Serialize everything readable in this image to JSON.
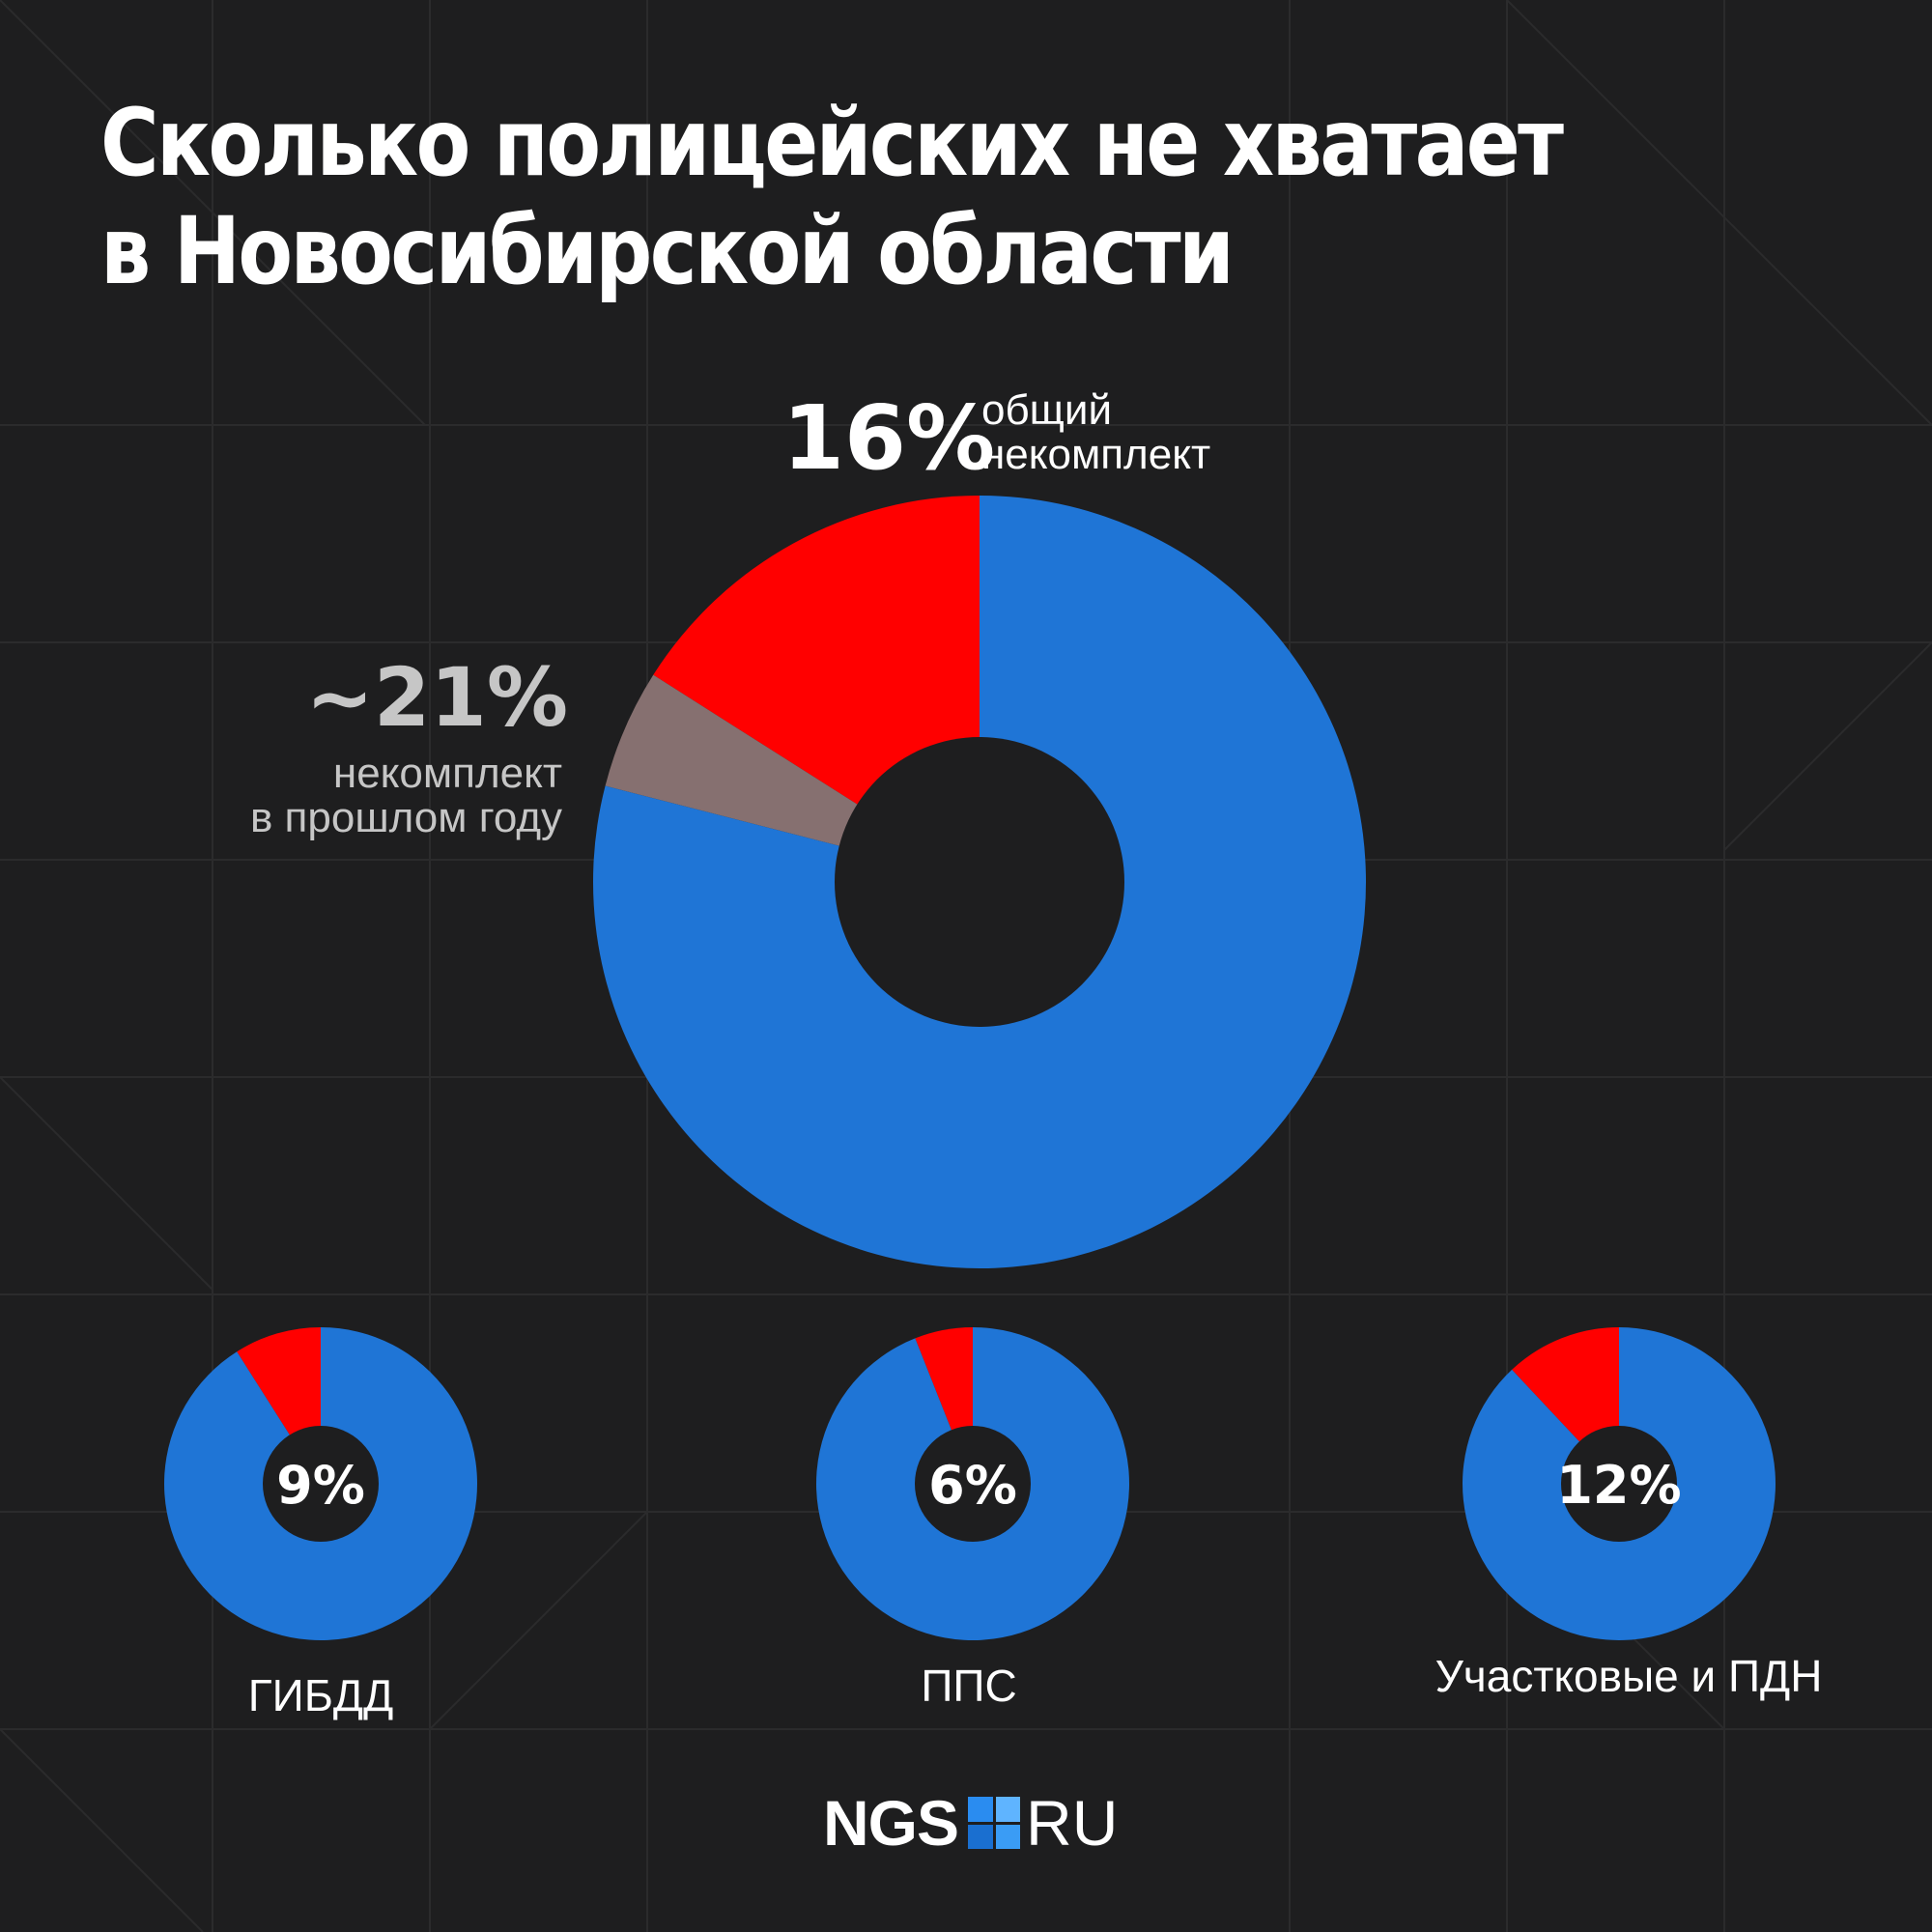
{
  "title": {
    "line1": "Сколько полицейских не хватает",
    "line2": "в Новосибирской области"
  },
  "main": {
    "current_pct": "16%",
    "current_caption_1": "общий",
    "current_caption_2": "некомплект",
    "last_year_pct": "~21%",
    "last_year_caption_1": "некомплект",
    "last_year_caption_2": "в прошлом году"
  },
  "small": [
    {
      "label": "ГИБДД",
      "pct": "9%"
    },
    {
      "label": "ППС",
      "pct": "6%"
    },
    {
      "label": "Участковые и ПДН",
      "pct": "12%"
    }
  ],
  "logo": {
    "left": "NGS",
    "right": "RU"
  },
  "colors": {
    "background": "#1e1e1f",
    "staffed": "#1f75d6",
    "shortage": "#ff0000",
    "last_year_extra": "#867070"
  },
  "chart_data": [
    {
      "type": "pie",
      "variant": "donut",
      "title": "",
      "slices": [
        {
          "label": "общий некомплект",
          "value": 16,
          "color": "#ff0000"
        },
        {
          "label": "некомплект в прошлом году",
          "value": 5,
          "color": "#867070",
          "note": "~21% total"
        },
        {
          "label": "",
          "value": 79,
          "color": "#1f75d6"
        }
      ]
    },
    {
      "type": "pie",
      "variant": "donut",
      "title": "ГИБДД",
      "slices": [
        {
          "label": "9%",
          "value": 9,
          "color": "#ff0000"
        },
        {
          "label": "",
          "value": 91,
          "color": "#1f75d6"
        }
      ]
    },
    {
      "type": "pie",
      "variant": "donut",
      "title": "ППС",
      "slices": [
        {
          "label": "6%",
          "value": 6,
          "color": "#ff0000"
        },
        {
          "label": "",
          "value": 94,
          "color": "#1f75d6"
        }
      ]
    },
    {
      "type": "pie",
      "variant": "donut",
      "title": "Участковые и ПДН",
      "slices": [
        {
          "label": "12%",
          "value": 12,
          "color": "#ff0000"
        },
        {
          "label": "",
          "value": 88,
          "color": "#1f75d6"
        }
      ]
    }
  ]
}
